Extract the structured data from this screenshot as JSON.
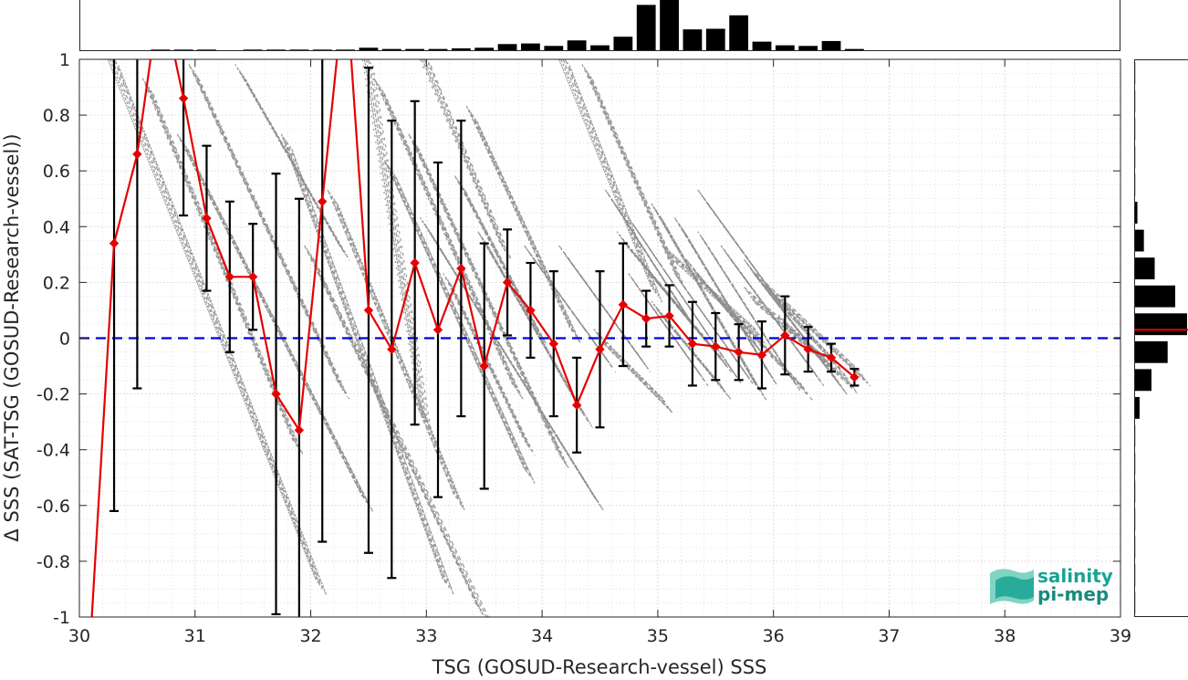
{
  "chart_data": {
    "type": "scatter",
    "xlabel": "TSG (GOSUD-Research-vessel) SSS",
    "ylabel": "Δ SSS (SAT-TSG (GOSUD-Research-vessel))",
    "xlim": [
      30,
      39
    ],
    "ylim": [
      -1,
      1
    ],
    "x_ticks": [
      "30",
      "31",
      "32",
      "33",
      "34",
      "35",
      "36",
      "37",
      "38",
      "39"
    ],
    "y_ticks": [
      "-1",
      "-0.8",
      "-0.6",
      "-0.4",
      "-0.2",
      "0",
      "0.2",
      "0.4",
      "0.6",
      "0.8",
      "1"
    ],
    "grid": true,
    "zero_line": 0,
    "binned_mean": {
      "x": [
        30.1,
        30.3,
        30.5,
        30.7,
        30.9,
        31.1,
        31.3,
        31.5,
        31.7,
        31.9,
        32.1,
        32.3,
        32.5,
        32.7,
        32.9,
        33.1,
        33.3,
        33.5,
        33.7,
        33.9,
        34.1,
        34.3,
        34.5,
        34.7,
        34.9,
        35.1,
        35.3,
        35.5,
        35.7,
        35.9,
        36.1,
        36.3,
        36.5,
        36.7
      ],
      "mean": [
        -1.05,
        0.34,
        0.66,
        1.25,
        0.86,
        0.43,
        0.22,
        0.22,
        -0.2,
        -0.33,
        0.49,
        1.3,
        0.1,
        -0.04,
        0.27,
        0.03,
        0.25,
        -0.1,
        0.2,
        0.1,
        -0.02,
        -0.24,
        -0.04,
        0.12,
        0.07,
        0.08,
        -0.02,
        -0.03,
        -0.05,
        -0.06,
        0.01,
        -0.04,
        -0.07,
        -0.14
      ],
      "std": [
        null,
        0.96,
        0.84,
        null,
        0.42,
        0.26,
        0.27,
        0.19,
        0.79,
        0.83,
        1.22,
        null,
        0.87,
        0.82,
        0.58,
        0.6,
        0.53,
        0.44,
        0.19,
        0.17,
        0.26,
        0.17,
        0.28,
        0.22,
        0.1,
        0.11,
        0.15,
        0.12,
        0.1,
        0.12,
        0.14,
        0.08,
        0.05,
        0.03
      ]
    },
    "scatter_streaks": [
      [
        30.3,
        1.0,
        32.1,
        -0.9
      ],
      [
        30.6,
        0.9,
        31.9,
        -0.4
      ],
      [
        30.9,
        0.7,
        32.5,
        -0.6
      ],
      [
        31.0,
        0.95,
        32.3,
        -0.2
      ],
      [
        31.4,
        0.95,
        32.3,
        0.3
      ],
      [
        31.8,
        0.7,
        33.2,
        -0.9
      ],
      [
        32.0,
        0.3,
        33.5,
        -1.0
      ],
      [
        32.2,
        0.5,
        33.3,
        -0.6
      ],
      [
        32.5,
        1.0,
        33.0,
        -0.3
      ],
      [
        32.6,
        0.9,
        33.8,
        -0.2
      ],
      [
        32.7,
        0.6,
        33.9,
        -0.5
      ],
      [
        32.9,
        0.7,
        34.2,
        -0.45
      ],
      [
        33.0,
        0.4,
        34.5,
        -0.6
      ],
      [
        33.0,
        1.0,
        33.7,
        0.3
      ],
      [
        33.3,
        0.55,
        34.0,
        0.0
      ],
      [
        33.5,
        0.35,
        34.4,
        -0.3
      ],
      [
        33.2,
        0.2,
        33.9,
        -0.4
      ],
      [
        33.4,
        0.8,
        34.3,
        0.0
      ],
      [
        33.9,
        0.3,
        34.6,
        -0.1
      ],
      [
        34.2,
        0.3,
        34.9,
        -0.1
      ],
      [
        34.2,
        1.0,
        35.0,
        0.15
      ],
      [
        34.4,
        0.95,
        35.2,
        0.2
      ],
      [
        34.6,
        0.5,
        35.3,
        0.05
      ],
      [
        34.8,
        0.4,
        35.7,
        -0.15
      ],
      [
        34.7,
        0.35,
        35.5,
        -0.05
      ],
      [
        35.0,
        0.45,
        35.9,
        -0.2
      ],
      [
        34.9,
        0.25,
        35.6,
        -0.1
      ],
      [
        35.2,
        0.4,
        36.0,
        -0.15
      ],
      [
        35.4,
        0.35,
        36.2,
        -0.17
      ],
      [
        35.6,
        0.3,
        36.4,
        -0.15
      ],
      [
        35.8,
        0.25,
        36.6,
        -0.18
      ],
      [
        35.2,
        0.2,
        35.8,
        -0.15
      ],
      [
        35.0,
        0.1,
        35.6,
        -0.2
      ],
      [
        35.5,
        0.15,
        36.3,
        -0.2
      ],
      [
        35.8,
        0.15,
        36.5,
        -0.1
      ],
      [
        36.0,
        0.15,
        36.6,
        -0.12
      ],
      [
        36.1,
        0.05,
        36.7,
        -0.18
      ],
      [
        34.5,
        0.0,
        35.1,
        -0.25
      ],
      [
        35.4,
        0.5,
        36.1,
        0.1
      ],
      [
        35.9,
        0.2,
        36.8,
        -0.15
      ],
      [
        35.1,
        0.3,
        35.9,
        0.0
      ],
      [
        34.8,
        0.2,
        35.4,
        -0.15
      ],
      [
        35.3,
        0.25,
        35.9,
        -0.05
      ]
    ],
    "x_histogram": {
      "bin_centers": [
        30.1,
        30.3,
        30.5,
        30.7,
        30.9,
        31.1,
        31.3,
        31.5,
        31.7,
        31.9,
        32.1,
        32.3,
        32.5,
        32.7,
        32.9,
        33.1,
        33.3,
        33.5,
        33.7,
        33.9,
        34.1,
        34.3,
        34.5,
        34.7,
        34.9,
        35.1,
        35.3,
        35.5,
        35.7,
        35.9,
        36.1,
        36.3,
        36.5,
        36.7
      ],
      "counts": [
        0,
        0,
        0,
        1,
        1,
        1,
        0,
        1,
        1,
        1,
        1,
        1,
        4,
        2,
        2,
        2,
        3,
        4,
        10,
        11,
        7,
        16,
        8,
        22,
        74,
        82,
        34,
        35,
        57,
        14,
        8,
        7,
        15,
        2
      ]
    },
    "y_histogram": {
      "bin_centers": [
        -0.95,
        -0.85,
        -0.75,
        -0.65,
        -0.55,
        -0.45,
        -0.35,
        -0.25,
        -0.15,
        -0.05,
        0.05,
        0.15,
        0.25,
        0.35,
        0.45,
        0.55,
        0.65,
        0.75,
        0.85,
        0.95
      ],
      "counts": [
        0,
        0,
        0,
        0,
        0,
        1,
        1,
        10,
        32,
        62,
        98,
        76,
        38,
        18,
        6,
        1,
        1,
        0,
        0,
        0
      ],
      "mean": 0.03
    },
    "colors": {
      "mean_line": "#e60000",
      "zero_line": "#0000dd",
      "scatter": "#8c8c8c",
      "error_bars": "#000000",
      "histogram": "#000000",
      "grid": "#cfcfcf"
    }
  },
  "logo": {
    "line1": "salinity",
    "line2": "pi-mep",
    "color": "#1aa394"
  }
}
